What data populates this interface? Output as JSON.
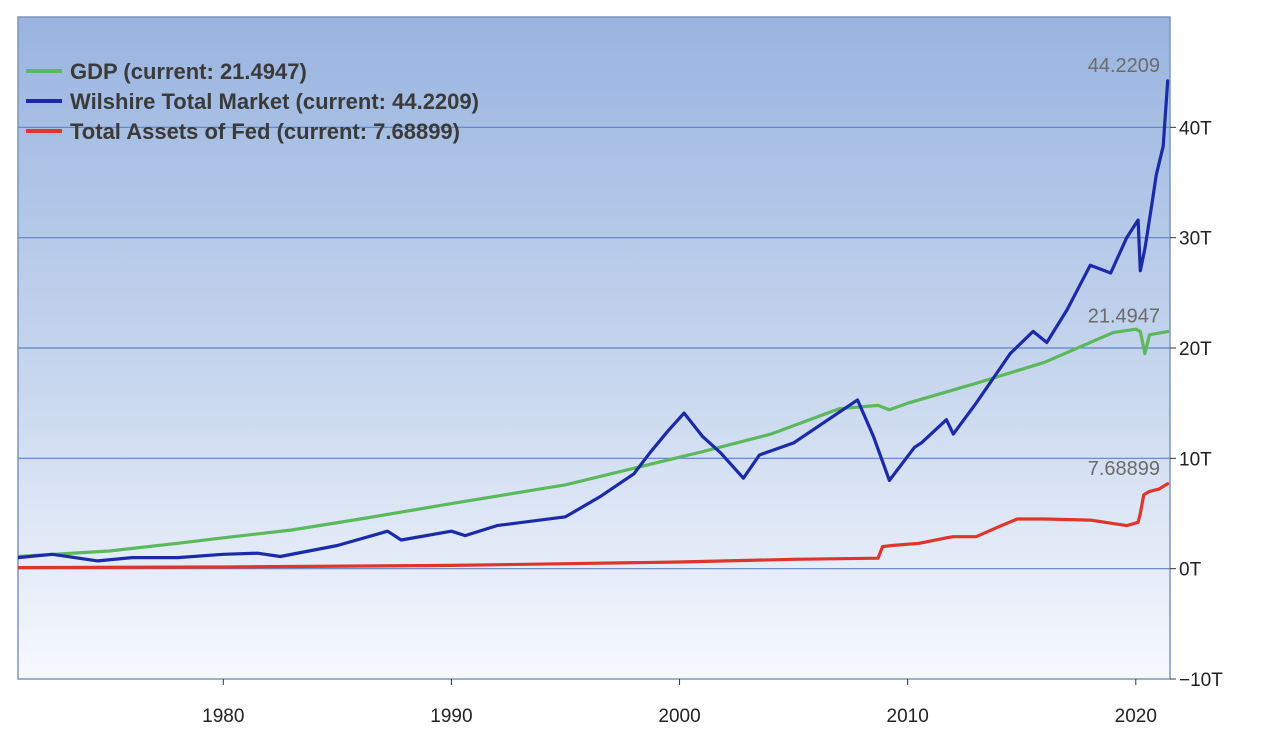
{
  "chart_data": {
    "type": "line",
    "xlim": [
      1971.0,
      2021.5
    ],
    "ylim": [
      -10,
      50
    ],
    "grid": true,
    "legend_position": "top-left",
    "x_ticks": [
      {
        "value": 1980,
        "label": "1980"
      },
      {
        "value": 1990,
        "label": "1990"
      },
      {
        "value": 2000,
        "label": "2000"
      },
      {
        "value": 2010,
        "label": "2010"
      },
      {
        "value": 2020,
        "label": "2020"
      }
    ],
    "y_ticks": [
      {
        "value": -10,
        "label": "−10T"
      },
      {
        "value": 0,
        "label": "0T"
      },
      {
        "value": 10,
        "label": "10T"
      },
      {
        "value": 20,
        "label": "20T"
      },
      {
        "value": 30,
        "label": "30T"
      },
      {
        "value": 40,
        "label": "40T"
      }
    ],
    "series": [
      {
        "name": "GDP",
        "legend_label": "GDP (current: 21.4947)",
        "color": "#5cb85c",
        "end_label": "21.4947",
        "x": [
          1971,
          1975,
          1978,
          1980,
          1983,
          1986,
          1990,
          1995,
          1999,
          2001,
          2004,
          2007,
          2008.7,
          2009.2,
          2010,
          2013,
          2016,
          2019,
          2020,
          2020.2,
          2020.4,
          2020.6,
          2021.4
        ],
        "y": [
          1.1,
          1.6,
          2.3,
          2.8,
          3.5,
          4.5,
          5.9,
          7.6,
          9.6,
          10.6,
          12.2,
          14.5,
          14.8,
          14.4,
          15.0,
          16.8,
          18.7,
          21.4,
          21.7,
          21.5,
          19.5,
          21.2,
          21.49
        ]
      },
      {
        "name": "Wilshire Total Market",
        "legend_label": "Wilshire Total Market (current: 44.2209)",
        "color": "#1a2aa8",
        "end_label": "44.2209",
        "x": [
          1971,
          1972.5,
          1974.5,
          1976,
          1978,
          1980,
          1981.5,
          1982.5,
          1985,
          1987.2,
          1987.8,
          1990,
          1990.6,
          1992,
          1995,
          1996.5,
          1998,
          1998.7,
          1999.5,
          2000.2,
          2001,
          2001.8,
          2002.8,
          2003.5,
          2005,
          2007.8,
          2008.5,
          2009.2,
          2010.3,
          2010.6,
          2011.7,
          2012,
          2013,
          2014.5,
          2015.5,
          2016.1,
          2017,
          2018,
          2018.9,
          2019.6,
          2020.1,
          2020.2,
          2020.4,
          2020.7,
          2020.9,
          2021.2,
          2021.4
        ],
        "y": [
          1.0,
          1.3,
          0.7,
          1.0,
          1.0,
          1.3,
          1.4,
          1.1,
          2.1,
          3.4,
          2.6,
          3.4,
          3.0,
          3.9,
          4.7,
          6.5,
          8.6,
          10.5,
          12.5,
          14.1,
          12.0,
          10.5,
          8.2,
          10.3,
          11.4,
          15.3,
          12.0,
          8.0,
          11.0,
          11.4,
          13.5,
          12.2,
          15.0,
          19.5,
          21.5,
          20.5,
          23.5,
          27.5,
          26.8,
          30.0,
          31.6,
          27.0,
          29.0,
          33.0,
          35.7,
          38.3,
          44.22
        ]
      },
      {
        "name": "Total Assets of Fed",
        "legend_label": "Total Assets of Fed (current: 7.68899)",
        "color": "#e0352b",
        "end_label": "7.68899",
        "x": [
          1971,
          1980,
          1990,
          1995,
          2000,
          2005,
          2008.7,
          2008.9,
          2009.3,
          2010.5,
          2011,
          2011.7,
          2012,
          2013,
          2014,
          2014.8,
          2016,
          2018,
          2019.6,
          2020.1,
          2020.2,
          2020.35,
          2020.6,
          2021,
          2021.4
        ],
        "y": [
          0.1,
          0.15,
          0.3,
          0.45,
          0.6,
          0.85,
          0.95,
          2.0,
          2.1,
          2.3,
          2.5,
          2.8,
          2.9,
          2.9,
          3.8,
          4.5,
          4.5,
          4.4,
          3.9,
          4.2,
          5.0,
          6.7,
          7.0,
          7.2,
          7.69
        ]
      }
    ]
  }
}
